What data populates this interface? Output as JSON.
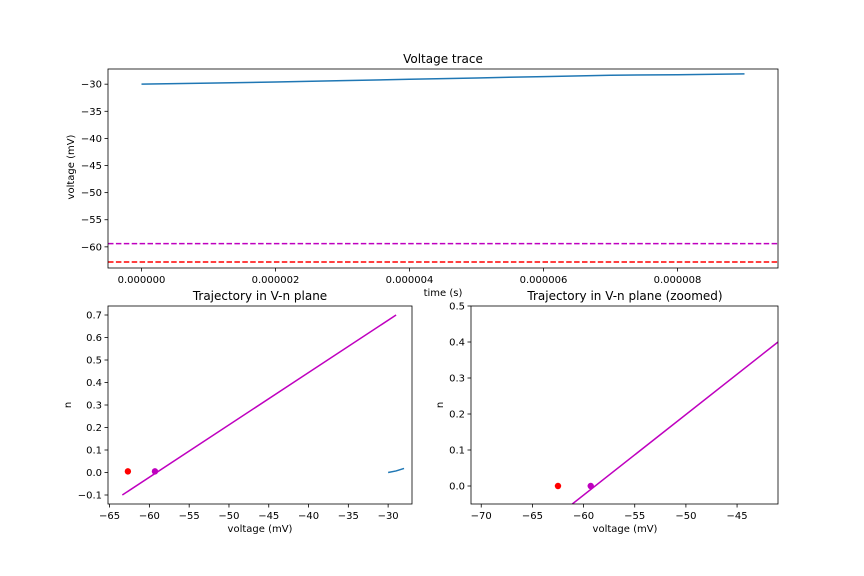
{
  "colors": {
    "trace": "#1f77b4",
    "red": "#ff0000",
    "magenta": "#bf00bf"
  },
  "chart_data": [
    {
      "type": "line",
      "title": "Voltage trace",
      "xlabel": "time (s)",
      "ylabel": "voltage (mV)",
      "xlim": [
        -5e-07,
        9.5e-06
      ],
      "ylim": [
        -63.9,
        -27.2
      ],
      "xticks": [
        0,
        2e-06,
        4e-06,
        6e-06,
        8e-06
      ],
      "xticklabels": [
        "0.000000",
        "0.000002",
        "0.000004",
        "0.000006",
        "0.000008"
      ],
      "yticks": [
        -60,
        -55,
        -50,
        -45,
        -40,
        -35,
        -30
      ],
      "yticklabels": [
        "−60",
        "−55",
        "−50",
        "−45",
        "−40",
        "−35",
        "−30"
      ],
      "series": [
        {
          "color": "#1f77b4",
          "x": [
            0,
            1e-06,
            2e-06,
            3e-06,
            4e-06,
            5e-06,
            6e-06,
            7e-06,
            8e-06,
            9e-06
          ],
          "y": [
            -30.0,
            -29.8,
            -29.6,
            -29.35,
            -29.1,
            -28.85,
            -28.6,
            -28.35,
            -28.25,
            -28.1
          ]
        }
      ],
      "hlines": [
        {
          "y": -59.4,
          "color": "#bf00bf",
          "style": "dashed"
        },
        {
          "y": -62.8,
          "color": "#ff0000",
          "style": "dashed"
        }
      ],
      "grid": false
    },
    {
      "type": "line",
      "title": "Trajectory in V-n plane",
      "xlabel": "voltage (mV)",
      "ylabel": "n",
      "xlim": [
        -65.2,
        -27.0
      ],
      "ylim": [
        -0.14,
        0.74
      ],
      "xticks": [
        -65,
        -60,
        -55,
        -50,
        -45,
        -40,
        -35,
        -30
      ],
      "xticklabels": [
        "−65",
        "−60",
        "−55",
        "−50",
        "−45",
        "−40",
        "−35",
        "−30"
      ],
      "yticks": [
        -0.1,
        0.0,
        0.1,
        0.2,
        0.3,
        0.4,
        0.5,
        0.6,
        0.7
      ],
      "yticklabels": [
        "−0.1",
        "0.0",
        "0.1",
        "0.2",
        "0.3",
        "0.4",
        "0.5",
        "0.6",
        "0.7"
      ],
      "series": [
        {
          "color": "#bf00bf",
          "x": [
            -63.4,
            -29.0
          ],
          "y": [
            -0.1,
            0.7
          ]
        },
        {
          "color": "#1f77b4",
          "x": [
            -30.0,
            -29.0,
            -28.0
          ],
          "y": [
            0.0,
            0.007,
            0.018
          ]
        }
      ],
      "points": [
        {
          "x": -62.7,
          "y": 0.005,
          "color": "#ff0000"
        },
        {
          "x": -59.3,
          "y": 0.005,
          "color": "#bf00bf"
        }
      ],
      "grid": false
    },
    {
      "type": "line",
      "title": "Trajectory in V-n plane (zoomed)",
      "xlabel": "voltage (mV)",
      "ylabel": "n",
      "xlim": [
        -71,
        -41
      ],
      "ylim": [
        -0.05,
        0.5
      ],
      "xticks": [
        -70,
        -65,
        -60,
        -55,
        -50,
        -45
      ],
      "xticklabels": [
        "−70",
        "−65",
        "−60",
        "−55",
        "−50",
        "−45"
      ],
      "yticks": [
        0.0,
        0.1,
        0.2,
        0.3,
        0.4,
        0.5
      ],
      "yticklabels": [
        "0.0",
        "0.1",
        "0.2",
        "0.3",
        "0.4",
        "0.5"
      ],
      "series": [
        {
          "color": "#bf00bf",
          "x": [
            -61.1,
            -41
          ],
          "y": [
            -0.05,
            0.4
          ]
        }
      ],
      "points": [
        {
          "x": -62.5,
          "y": 0.0,
          "color": "#ff0000"
        },
        {
          "x": -59.3,
          "y": 0.0,
          "color": "#bf00bf"
        }
      ],
      "grid": false
    }
  ]
}
